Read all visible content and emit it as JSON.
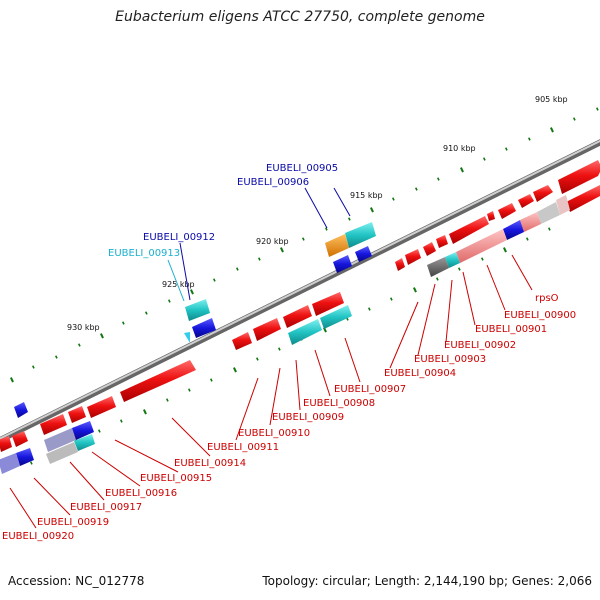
{
  "title": "Eubacterium eligens ATCC 27750, complete genome",
  "footer": {
    "accession": "Accession: NC_012778",
    "topology": "Topology: circular; Length: 2,144,190 bp; Genes: 2,066"
  },
  "scale_labels": [
    "905 kbp",
    "910 kbp",
    "915 kbp",
    "920 kbp",
    "925 kbp",
    "930 kbp"
  ],
  "gene_labels": [
    {
      "text": "EUBELI_00905",
      "color": "#0a0aa8"
    },
    {
      "text": "EUBELI_00906",
      "color": "#0a0aa8"
    },
    {
      "text": "EUBELI_00912",
      "color": "#0a0aa8"
    },
    {
      "text": "EUBELI_00913",
      "color": "#1ab0d0"
    },
    {
      "text": "rpsO",
      "color": "#cc0000"
    },
    {
      "text": "EUBELI_00900",
      "color": "#cc0000"
    },
    {
      "text": "EUBELI_00901",
      "color": "#cc0000"
    },
    {
      "text": "EUBELI_00902",
      "color": "#cc0000"
    },
    {
      "text": "EUBELI_00903",
      "color": "#cc0000"
    },
    {
      "text": "EUBELI_00904",
      "color": "#cc0000"
    },
    {
      "text": "EUBELI_00907",
      "color": "#cc0000"
    },
    {
      "text": "EUBELI_00908",
      "color": "#cc0000"
    },
    {
      "text": "EUBELI_00909",
      "color": "#cc0000"
    },
    {
      "text": "EUBELI_00910",
      "color": "#cc0000"
    },
    {
      "text": "EUBELI_00911",
      "color": "#cc0000"
    },
    {
      "text": "EUBELI_00914",
      "color": "#cc0000"
    },
    {
      "text": "EUBELI_00915",
      "color": "#cc0000"
    },
    {
      "text": "EUBELI_00916",
      "color": "#cc0000"
    },
    {
      "text": "EUBELI_00917",
      "color": "#cc0000"
    },
    {
      "text": "EUBELI_00919",
      "color": "#cc0000"
    },
    {
      "text": "EUBELI_00920",
      "color": "#cc0000"
    }
  ],
  "colors": {
    "backbone": "#888888",
    "red_gene": "#ee1111",
    "pink_gene": "#f08a8a",
    "cyan_gene": "#22c4c4",
    "blue_gene": "#1616dd",
    "orange_gene": "#f08a10",
    "gray_gene": "#666666",
    "tick": "#117711"
  }
}
